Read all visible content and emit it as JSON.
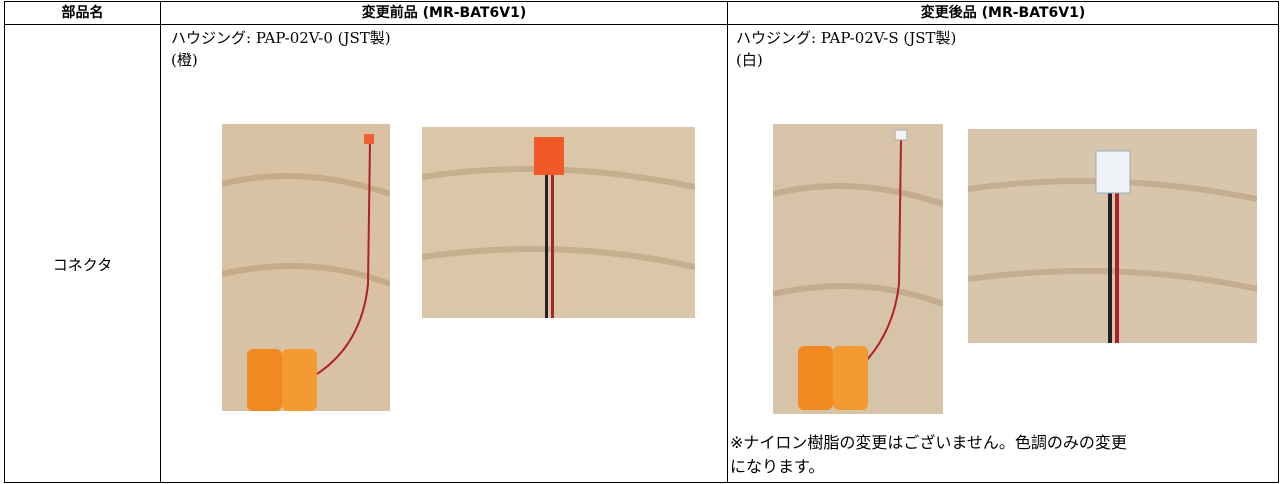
{
  "table": {
    "header": [
      "部品名",
      "変更前品 (MR-BAT6V1)",
      "変更後品 (MR-BAT6V1)"
    ],
    "rows": [
      {
        "part": "コネクタ",
        "before": {
          "housing": "ハウジング: PAP-02V-0 (JST製)",
          "color": "(橙)"
        },
        "after": {
          "housing": "ハウジング: PAP-02V-S (JST製)",
          "color": "(白)",
          "note": "※ナイロン樹脂の変更はございません。色調のみの変更になります。"
        }
      }
    ]
  }
}
